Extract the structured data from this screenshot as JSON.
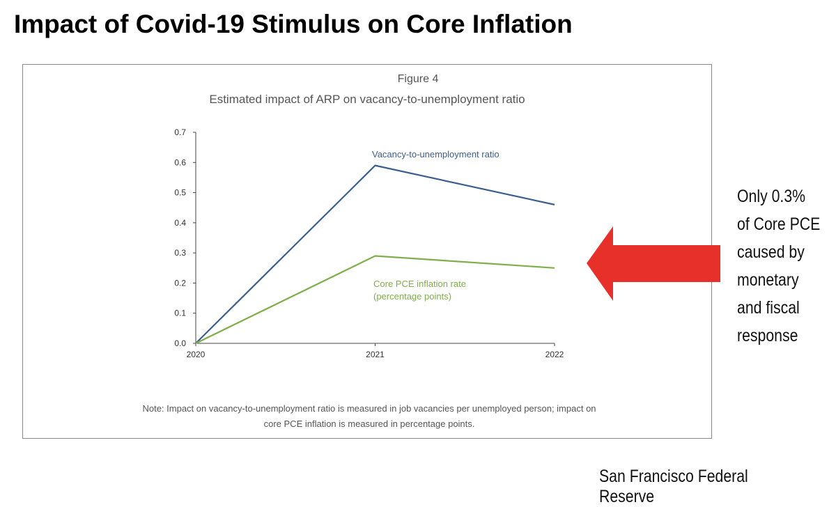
{
  "headline": "Impact of Covid-19 Stimulus on Core Inflation",
  "figure_label": "Figure 4",
  "note_lines": [
    "Note: Impact on vacancy-to-unemployment ratio is measured in job vacancies per unemployed person; impact on",
    "core PCE inflation is measured in percentage points."
  ],
  "callout_lines": [
    "Only 0.3%",
    "of Core PCE",
    "caused by",
    "monetary",
    "and fiscal",
    "response"
  ],
  "source": "San Francisco Federal Reserve",
  "arrow_color": "#e8302a",
  "chart_data": {
    "type": "line",
    "title": "Estimated impact of ARP on vacancy-to-unemployment ratio",
    "x": [
      "2020",
      "2021",
      "2022"
    ],
    "ylim": [
      0,
      0.7
    ],
    "yticks": [
      "0.0",
      "0.1",
      "0.2",
      "0.3",
      "0.4",
      "0.5",
      "0.6",
      "0.7"
    ],
    "grid": false,
    "series": [
      {
        "name": "Vacancy-to-unemployment ratio",
        "values": [
          0,
          0.59,
          0.46
        ],
        "color": "#3a5f8f"
      },
      {
        "name": "Core PCE inflation rate",
        "name_line2": "(percentage points)",
        "values": [
          0,
          0.29,
          0.25
        ],
        "color": "#7fae4a"
      }
    ]
  }
}
